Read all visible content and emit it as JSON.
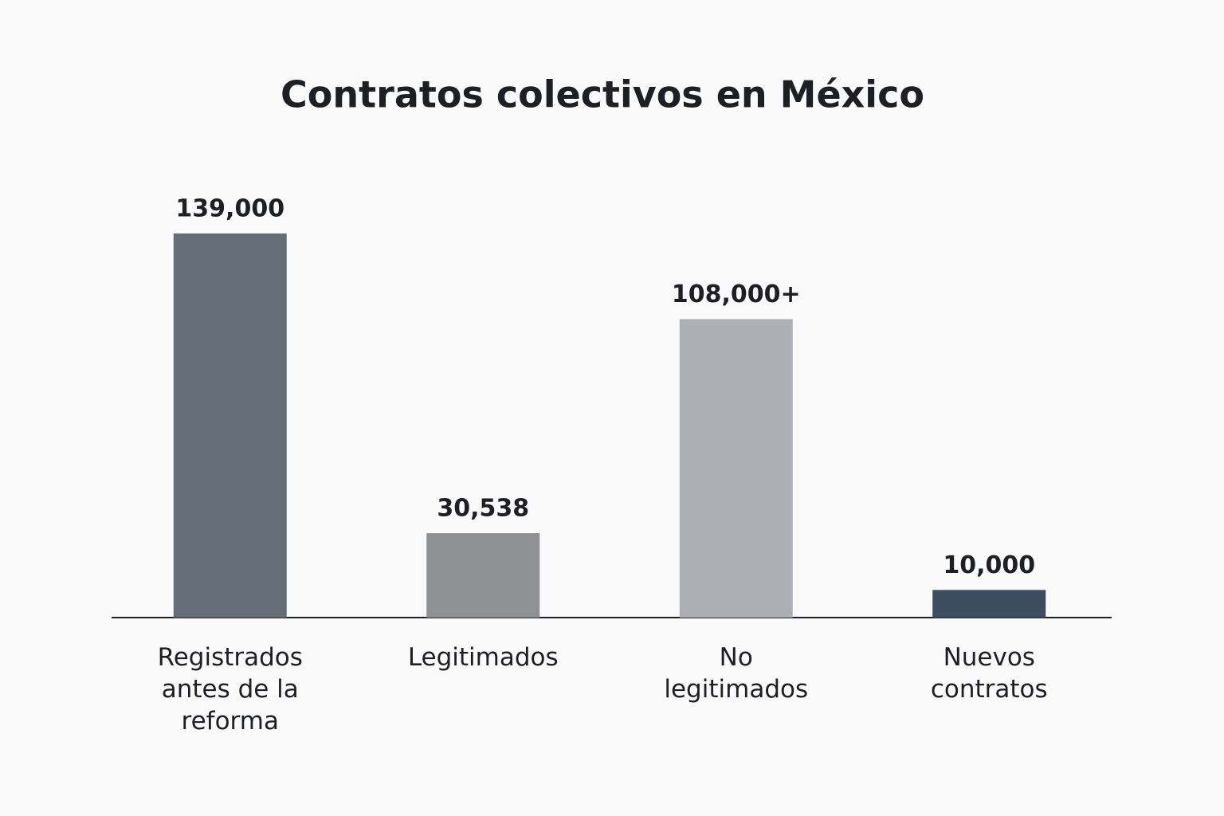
{
  "chart_data": {
    "type": "bar",
    "title": "Contratos colectivos en México",
    "categories": [
      "Registrados antes de la reforma",
      "Legitimados",
      "No legitimados",
      "Nuevos contratos"
    ],
    "values": [
      139000,
      30538,
      108000,
      10000
    ],
    "value_labels": [
      "139,000",
      "30,538",
      "108,000+",
      "10,000"
    ],
    "colors": [
      "#656d77",
      "#8e9094",
      "#adafb4",
      "#3d4c5e"
    ]
  }
}
